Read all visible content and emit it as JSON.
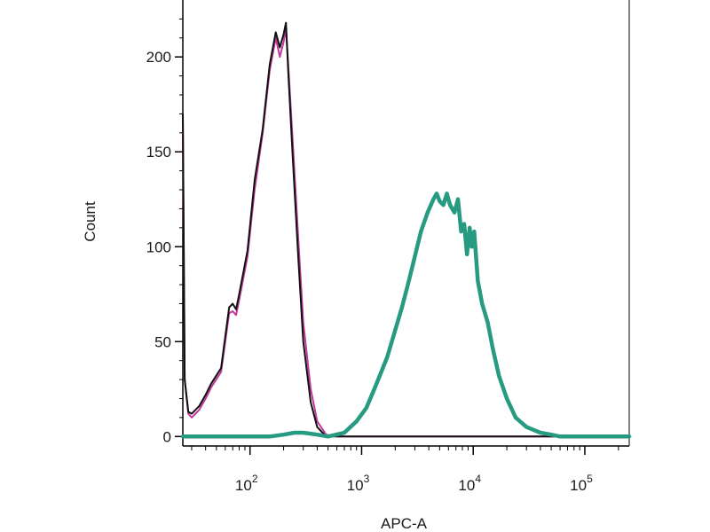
{
  "chart_data": {
    "type": "line",
    "title": "",
    "xlabel": "APC-A",
    "ylabel": "Count",
    "x_scale": "log",
    "xlim": [
      25,
      250000
    ],
    "ylim": [
      -5,
      230
    ],
    "grid": false,
    "legend": "none",
    "y_ticks": [
      {
        "value": 0,
        "label": "0"
      },
      {
        "value": 50,
        "label": "50"
      },
      {
        "value": 100,
        "label": "100"
      },
      {
        "value": 150,
        "label": "150"
      },
      {
        "value": 200,
        "label": "200"
      }
    ],
    "x_ticks": [
      {
        "value": 100,
        "base": "10",
        "exp": "2"
      },
      {
        "value": 1000,
        "base": "10",
        "exp": "3"
      },
      {
        "value": 10000,
        "base": "10",
        "exp": "4"
      },
      {
        "value": 100000,
        "base": "10",
        "exp": "5"
      }
    ],
    "series": [
      {
        "color": "#c0389a",
        "width": 2,
        "x": [
          25,
          26,
          28,
          30,
          35,
          40,
          45,
          55,
          65,
          70,
          75,
          80,
          95,
          110,
          130,
          150,
          170,
          185,
          200,
          210,
          220,
          240,
          270,
          300,
          350,
          400,
          480,
          600,
          800,
          1500,
          5000,
          50000,
          250000
        ],
        "y": [
          170,
          30,
          12,
          10,
          14,
          20,
          26,
          34,
          65,
          66,
          64,
          72,
          95,
          130,
          160,
          193,
          210,
          200,
          208,
          215,
          196,
          158,
          105,
          60,
          25,
          8,
          1,
          0,
          0,
          0,
          0,
          0,
          0
        ]
      },
      {
        "color": "#111111",
        "width": 2,
        "x": [
          25,
          26,
          28,
          30,
          35,
          40,
          45,
          55,
          65,
          70,
          75,
          80,
          95,
          110,
          130,
          150,
          170,
          185,
          200,
          210,
          220,
          240,
          270,
          300,
          350,
          400,
          480,
          600,
          800,
          1500,
          5000,
          50000,
          250000
        ],
        "y": [
          170,
          30,
          13,
          12,
          16,
          22,
          28,
          36,
          68,
          70,
          67,
          75,
          98,
          135,
          162,
          196,
          213,
          205,
          212,
          218,
          192,
          150,
          95,
          50,
          18,
          5,
          0,
          0,
          0,
          0,
          0,
          0,
          0
        ]
      },
      {
        "color": "#279a82",
        "width": 4.5,
        "x": [
          25,
          40,
          60,
          100,
          150,
          200,
          250,
          300,
          400,
          500,
          700,
          900,
          1100,
          1300,
          1500,
          1700,
          2000,
          2300,
          2600,
          3000,
          3400,
          3900,
          4400,
          4700,
          5000,
          5400,
          5800,
          6200,
          6800,
          7300,
          7800,
          8300,
          8800,
          9300,
          9700,
          10200,
          11000,
          12000,
          13500,
          15000,
          17000,
          20000,
          24000,
          30000,
          40000,
          50000,
          60000,
          80000,
          100000,
          250000
        ],
        "y": [
          0,
          0,
          0,
          0,
          0,
          1,
          2,
          2,
          1,
          0,
          2,
          8,
          15,
          25,
          34,
          42,
          56,
          68,
          80,
          95,
          108,
          118,
          125,
          128,
          124,
          122,
          128,
          122,
          118,
          125,
          108,
          112,
          96,
          110,
          100,
          108,
          82,
          70,
          60,
          46,
          32,
          20,
          10,
          5,
          2,
          1,
          0,
          0,
          0,
          0
        ]
      }
    ]
  }
}
